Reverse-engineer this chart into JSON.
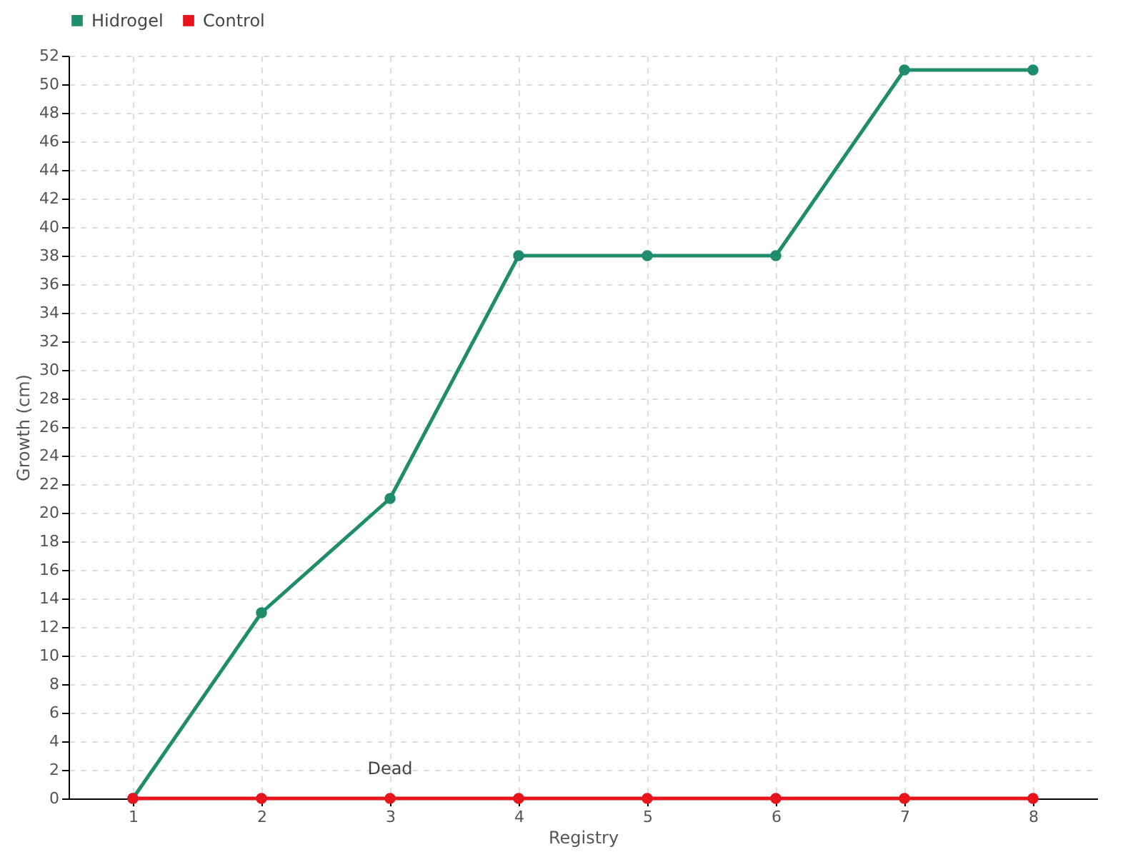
{
  "chart_data": {
    "type": "line",
    "xlabel": "Registry",
    "ylabel": "Growth (cm)",
    "x": [
      1,
      2,
      3,
      4,
      5,
      6,
      7,
      8
    ],
    "series": [
      {
        "name": "Hidrogel",
        "color": "#1f8c6c",
        "values": [
          0,
          13,
          21,
          38,
          38,
          38,
          51,
          51
        ]
      },
      {
        "name": "Control",
        "color": "#e8141c",
        "values": [
          0,
          0,
          0,
          0,
          0,
          0,
          0,
          0
        ]
      }
    ],
    "xlim": [
      0.5,
      8.5
    ],
    "xticks": [
      1,
      2,
      3,
      4,
      5,
      6,
      7,
      8
    ],
    "ylim": [
      0,
      52
    ],
    "yticks": [
      0,
      2,
      4,
      6,
      8,
      10,
      12,
      14,
      16,
      18,
      20,
      22,
      24,
      26,
      28,
      30,
      32,
      34,
      36,
      38,
      40,
      42,
      44,
      46,
      48,
      50,
      52
    ],
    "annotations": [
      {
        "text": "Dead",
        "x": 3,
        "y": 0
      }
    ],
    "grid": true,
    "legend": "top left",
    "marker": "circle",
    "line_style": "solid"
  }
}
